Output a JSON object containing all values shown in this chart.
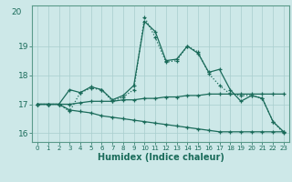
{
  "title": "",
  "xlabel": "Humidex (Indice chaleur)",
  "bg_color": "#cde8e8",
  "line_color": "#1a6b5a",
  "grid_color": "#a8cece",
  "x_values": [
    0,
    1,
    2,
    3,
    4,
    5,
    6,
    7,
    8,
    9,
    10,
    11,
    12,
    13,
    14,
    15,
    16,
    17,
    18,
    19,
    20,
    21,
    22,
    23
  ],
  "line1": [
    17.0,
    17.0,
    17.0,
    17.5,
    17.4,
    17.6,
    17.5,
    17.15,
    17.3,
    17.65,
    19.85,
    19.5,
    18.5,
    18.55,
    19.0,
    18.75,
    18.1,
    18.2,
    17.5,
    17.1,
    17.3,
    17.2,
    16.4,
    16.05
  ],
  "line2": [
    17.0,
    17.0,
    17.0,
    16.75,
    17.4,
    17.55,
    17.5,
    17.1,
    17.25,
    17.5,
    20.0,
    19.3,
    18.45,
    18.5,
    19.0,
    18.8,
    18.05,
    17.65,
    17.35,
    17.3,
    17.3,
    17.2,
    16.4,
    16.0
  ],
  "line3": [
    17.0,
    17.0,
    17.0,
    17.0,
    17.05,
    17.1,
    17.1,
    17.1,
    17.15,
    17.15,
    17.2,
    17.2,
    17.25,
    17.25,
    17.3,
    17.3,
    17.35,
    17.35,
    17.35,
    17.35,
    17.35,
    17.35,
    17.35,
    17.35
  ],
  "line4": [
    17.0,
    17.0,
    17.0,
    16.8,
    16.75,
    16.7,
    16.6,
    16.55,
    16.5,
    16.45,
    16.4,
    16.35,
    16.3,
    16.25,
    16.2,
    16.15,
    16.1,
    16.05,
    16.05,
    16.05,
    16.05,
    16.05,
    16.05,
    16.05
  ],
  "ylim": [
    15.7,
    20.4
  ],
  "yticks": [
    16,
    17,
    18,
    19
  ],
  "ytop_label": 20,
  "xticks": [
    0,
    1,
    2,
    3,
    4,
    5,
    6,
    7,
    8,
    9,
    10,
    11,
    12,
    13,
    14,
    15,
    16,
    17,
    18,
    19,
    20,
    21,
    22,
    23
  ]
}
